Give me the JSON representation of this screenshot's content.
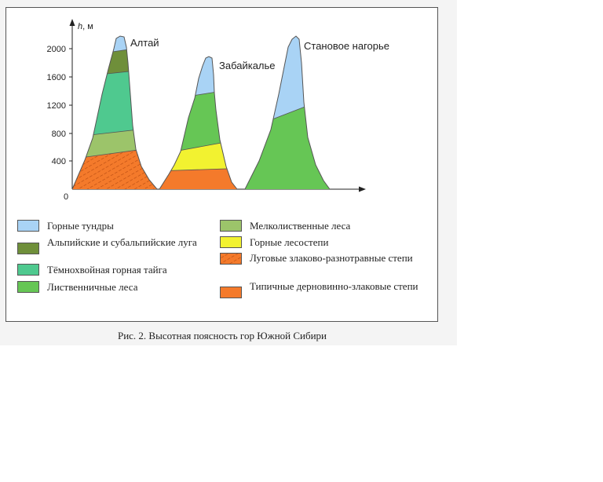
{
  "axis": {
    "y_label_italic": "h",
    "y_label_unit": ", м",
    "zero": "0",
    "ticks": [
      "400",
      "800",
      "1200",
      "1600",
      "2000"
    ]
  },
  "mountains": {
    "altai": "Алтай",
    "zabaikalye": "Забайкалье",
    "stanovoe": "Становое нагорье"
  },
  "legend": [
    {
      "label": "Горные тундры",
      "color": "#a9d3f5"
    },
    {
      "label": "Альпийские и субальпийские луга",
      "color": "#6f8f3a"
    },
    {
      "label": "Тёмнохвойная горная тайга",
      "color": "#4fc98f"
    },
    {
      "label": "Лиственничные леса",
      "color": "#66c655"
    },
    {
      "label": "Мелколиственные леса",
      "color": "#9cc46a"
    },
    {
      "label": "Горные лесостепи",
      "color": "#f2f230"
    },
    {
      "label": "Луговые злаково-разнотравные степи",
      "color": "#f47a2b"
    },
    {
      "label": "Типичные дерновинно-злаковые степи",
      "color": "#f47a2b"
    }
  ],
  "caption": "Рис. 2. Высотная поясность гор Южной Сибири"
}
